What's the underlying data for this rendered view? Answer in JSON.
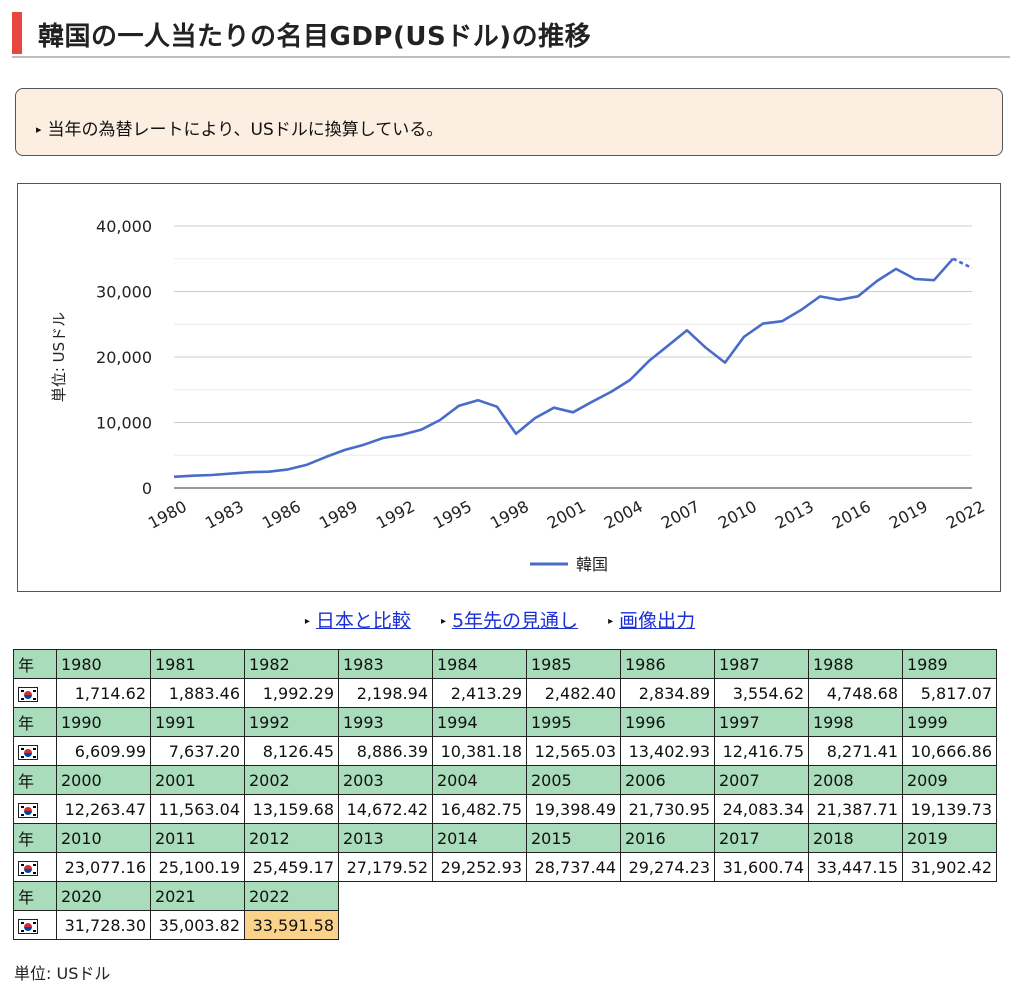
{
  "title": "韓国の一人当たりの名目GDP(USドル)の推移",
  "note": "当年の為替レートにより、USドルに換算している。",
  "links": [
    "日本と比較",
    "5年先の見通し",
    "画像出力"
  ],
  "table": {
    "year_label": "年",
    "flag_icon": "south-korea-flag-icon",
    "highlight_color": "#fad28a",
    "header_color": "#a8dcba",
    "unit": "単位: USドル"
  },
  "chart_data": {
    "type": "line",
    "title": "",
    "xlabel": "",
    "ylabel": "単位: USドル",
    "ylim": [
      0,
      40000
    ],
    "yticks": [
      "0",
      "10,000",
      "20,000",
      "30,000",
      "40,000"
    ],
    "xtick_labels": [
      "1980",
      "1983",
      "1986",
      "1989",
      "1992",
      "1995",
      "1998",
      "2001",
      "2004",
      "2007",
      "2010",
      "2013",
      "2016",
      "2019",
      "2022"
    ],
    "legend_position": "bottom",
    "grid": true,
    "line_color": "#4a6cc9",
    "x": [
      1980,
      1981,
      1982,
      1983,
      1984,
      1985,
      1986,
      1987,
      1988,
      1989,
      1990,
      1991,
      1992,
      1993,
      1994,
      1995,
      1996,
      1997,
      1998,
      1999,
      2000,
      2001,
      2002,
      2003,
      2004,
      2005,
      2006,
      2007,
      2008,
      2009,
      2010,
      2011,
      2012,
      2013,
      2014,
      2015,
      2016,
      2017,
      2018,
      2019,
      2020,
      2021,
      2022
    ],
    "x_labels": [
      "1980",
      "1981",
      "1982",
      "1983",
      "1984",
      "1985",
      "1986",
      "1987",
      "1988",
      "1989",
      "1990",
      "1991",
      "1992",
      "1993",
      "1994",
      "1995",
      "1996",
      "1997",
      "1998",
      "1999",
      "2000",
      "2001",
      "2002",
      "2003",
      "2004",
      "2005",
      "2006",
      "2007",
      "2008",
      "2009",
      "2010",
      "2011",
      "2012",
      "2013",
      "2014",
      "2015",
      "2016",
      "2017",
      "2018",
      "2019",
      "2020",
      "2021",
      "2022"
    ],
    "series": [
      {
        "name": "韓国",
        "values": [
          1714.62,
          1883.46,
          1992.29,
          2198.94,
          2413.29,
          2482.4,
          2834.89,
          3554.62,
          4748.68,
          5817.07,
          6609.99,
          7637.2,
          8126.45,
          8886.39,
          10381.18,
          12565.03,
          13402.93,
          12416.75,
          8271.41,
          10666.86,
          12263.47,
          11563.04,
          13159.68,
          14672.42,
          16482.75,
          19398.49,
          21730.95,
          24083.34,
          21387.71,
          19139.73,
          23077.16,
          25100.19,
          25459.17,
          27179.52,
          29252.93,
          28737.44,
          29274.23,
          31600.74,
          33447.15,
          31902.42,
          31728.3,
          35003.82,
          33591.58
        ],
        "labels": [
          "1,714.62",
          "1,883.46",
          "1,992.29",
          "2,198.94",
          "2,413.29",
          "2,482.40",
          "2,834.89",
          "3,554.62",
          "4,748.68",
          "5,817.07",
          "6,609.99",
          "7,637.20",
          "8,126.45",
          "8,886.39",
          "10,381.18",
          "12,565.03",
          "13,402.93",
          "12,416.75",
          "8,271.41",
          "10,666.86",
          "12,263.47",
          "11,563.04",
          "13,159.68",
          "14,672.42",
          "16,482.75",
          "19,398.49",
          "21,730.95",
          "24,083.34",
          "21,387.71",
          "19,139.73",
          "23,077.16",
          "25,100.19",
          "25,459.17",
          "27,179.52",
          "29,252.93",
          "28,737.44",
          "29,274.23",
          "31,600.74",
          "33,447.15",
          "31,902.42",
          "31,728.30",
          "35,003.82",
          "33,591.58"
        ],
        "estimated_from": 2021
      }
    ]
  }
}
